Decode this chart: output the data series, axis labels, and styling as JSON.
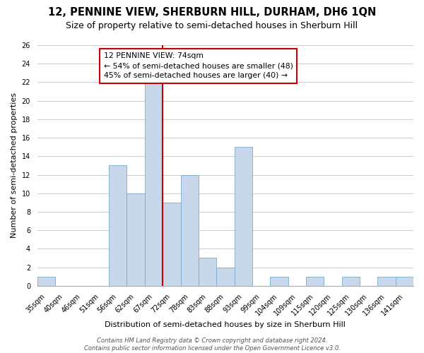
{
  "title": "12, PENNINE VIEW, SHERBURN HILL, DURHAM, DH6 1QN",
  "subtitle": "Size of property relative to semi-detached houses in Sherburn Hill",
  "xlabel": "Distribution of semi-detached houses by size in Sherburn Hill",
  "ylabel": "Number of semi-detached properties",
  "footer_line1": "Contains HM Land Registry data © Crown copyright and database right 2024.",
  "footer_line2": "Contains public sector information licensed under the Open Government Licence v3.0.",
  "bin_labels": [
    "35sqm",
    "40sqm",
    "46sqm",
    "51sqm",
    "56sqm",
    "62sqm",
    "67sqm",
    "72sqm",
    "78sqm",
    "83sqm",
    "88sqm",
    "93sqm",
    "99sqm",
    "104sqm",
    "109sqm",
    "115sqm",
    "120sqm",
    "125sqm",
    "130sqm",
    "136sqm",
    "141sqm"
  ],
  "bin_counts": [
    1,
    0,
    0,
    0,
    13,
    10,
    22,
    9,
    12,
    3,
    2,
    15,
    0,
    1,
    0,
    1,
    0,
    1,
    0,
    1,
    1
  ],
  "bar_color": "#c8d8ea",
  "bar_edge_color": "#7aaac8",
  "property_line_index": 7,
  "property_line_color": "#cc0000",
  "annotation_title": "12 PENNINE VIEW: 74sqm",
  "annotation_line2": "← 54% of semi-detached houses are smaller (48)",
  "annotation_line3": "45% of semi-detached houses are larger (40) →",
  "annotation_box_color": "#ffffff",
  "annotation_box_edge_color": "#cc0000",
  "ylim": [
    0,
    26
  ],
  "yticks": [
    0,
    2,
    4,
    6,
    8,
    10,
    12,
    14,
    16,
    18,
    20,
    22,
    24,
    26
  ],
  "bg_color": "#ffffff",
  "grid_color": "#cccccc",
  "title_fontsize": 10.5,
  "subtitle_fontsize": 9,
  "axis_label_fontsize": 8,
  "tick_fontsize": 7,
  "annotation_fontsize": 7.8,
  "footer_fontsize": 6
}
